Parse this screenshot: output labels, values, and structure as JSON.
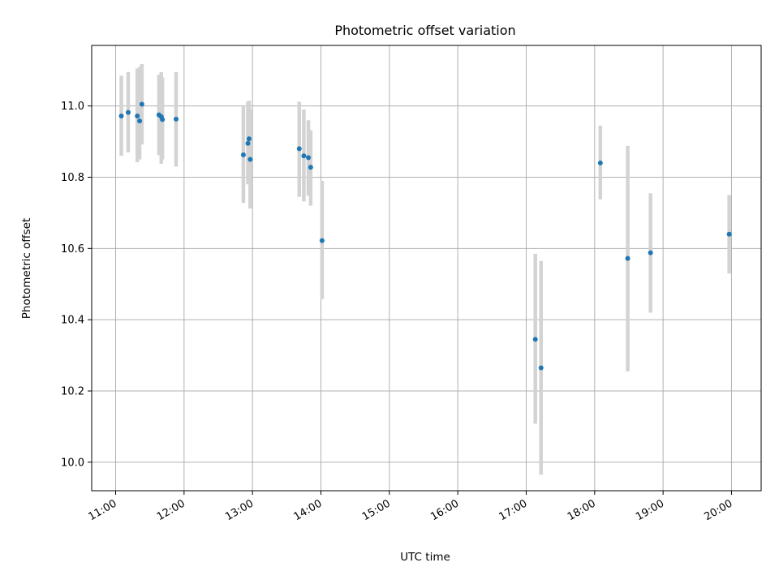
{
  "chart_data": {
    "type": "scatter",
    "title": "Photometric offset variation",
    "xlabel": "UTC time",
    "ylabel": "Photometric offset",
    "x_unit": "hours (UTC)",
    "xlim": [
      "10:39",
      "20:26"
    ],
    "ylim": [
      9.92,
      11.17
    ],
    "x_ticks": [
      "11:00",
      "12:00",
      "13:00",
      "14:00",
      "15:00",
      "16:00",
      "17:00",
      "18:00",
      "19:00",
      "20:00"
    ],
    "y_ticks": [
      10.0,
      10.2,
      10.4,
      10.6,
      10.8,
      11.0
    ],
    "y_tick_labels": [
      "10.0",
      "10.2",
      "10.4",
      "10.6",
      "10.8",
      "11.0"
    ],
    "grid": true,
    "marker_color": "#1f77b4",
    "errorbar_color": "#d3d3d3",
    "points": [
      {
        "t": "11:05",
        "y": 10.972,
        "lo": 10.86,
        "hi": 11.085
      },
      {
        "t": "11:11",
        "y": 10.982,
        "lo": 10.87,
        "hi": 11.095
      },
      {
        "t": "11:19",
        "y": 10.972,
        "lo": 10.842,
        "hi": 11.105
      },
      {
        "t": "11:21",
        "y": 10.958,
        "lo": 10.85,
        "hi": 11.11
      },
      {
        "t": "11:23",
        "y": 11.005,
        "lo": 10.892,
        "hi": 11.118
      },
      {
        "t": "11:38",
        "y": 10.975,
        "lo": 10.862,
        "hi": 11.088
      },
      {
        "t": "11:40",
        "y": 10.97,
        "lo": 10.838,
        "hi": 11.095
      },
      {
        "t": "11:41",
        "y": 10.962,
        "lo": 10.85,
        "hi": 11.08
      },
      {
        "t": "11:53",
        "y": 10.963,
        "lo": 10.83,
        "hi": 11.095
      },
      {
        "t": "12:52",
        "y": 10.863,
        "lo": 10.728,
        "hi": 10.998
      },
      {
        "t": "12:56",
        "y": 10.895,
        "lo": 10.78,
        "hi": 11.012
      },
      {
        "t": "12:57",
        "y": 10.908,
        "lo": 10.795,
        "hi": 11.015
      },
      {
        "t": "12:58",
        "y": 10.85,
        "lo": 10.712,
        "hi": 10.99
      },
      {
        "t": "13:41",
        "y": 10.88,
        "lo": 10.745,
        "hi": 11.012
      },
      {
        "t": "13:45",
        "y": 10.86,
        "lo": 10.732,
        "hi": 10.99
      },
      {
        "t": "13:49",
        "y": 10.855,
        "lo": 10.748,
        "hi": 10.96
      },
      {
        "t": "13:51",
        "y": 10.828,
        "lo": 10.72,
        "hi": 10.932
      },
      {
        "t": "14:01",
        "y": 10.622,
        "lo": 10.458,
        "hi": 10.79
      },
      {
        "t": "17:08",
        "y": 10.345,
        "lo": 10.108,
        "hi": 10.585
      },
      {
        "t": "17:13",
        "y": 10.265,
        "lo": 9.965,
        "hi": 10.565
      },
      {
        "t": "18:05",
        "y": 10.84,
        "lo": 10.738,
        "hi": 10.945
      },
      {
        "t": "18:29",
        "y": 10.572,
        "lo": 10.255,
        "hi": 10.888
      },
      {
        "t": "18:49",
        "y": 10.588,
        "lo": 10.42,
        "hi": 10.755
      },
      {
        "t": "19:58",
        "y": 10.64,
        "lo": 10.53,
        "hi": 10.75
      }
    ]
  }
}
